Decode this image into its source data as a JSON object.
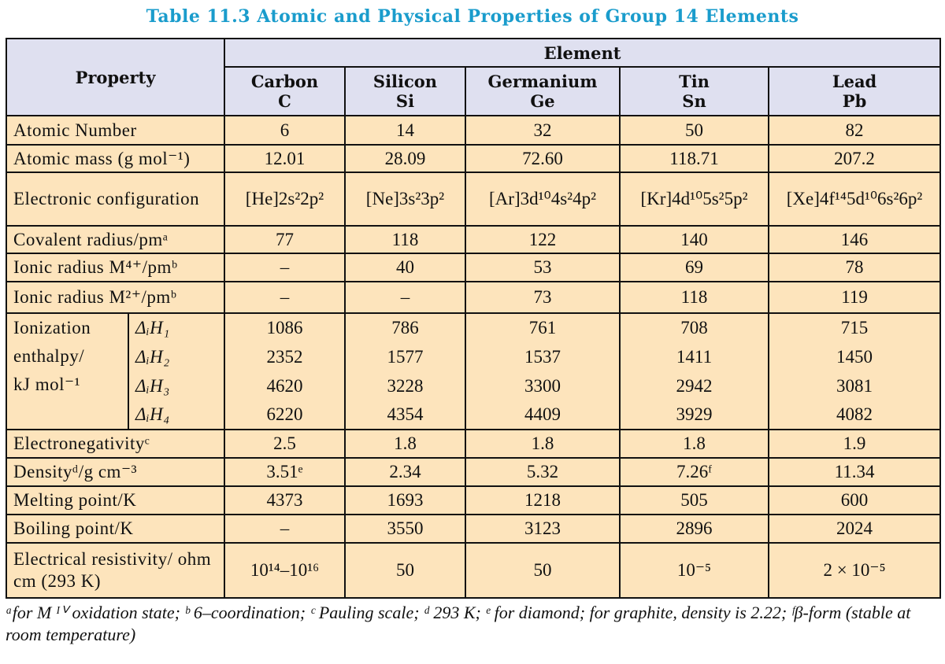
{
  "title": "Table 11.3  Atomic and Physical Properties of Group 14 Elements",
  "table": {
    "header": {
      "property": "Property",
      "group": "Element",
      "elements": [
        {
          "name": "Carbon",
          "symbol": "C"
        },
        {
          "name": "Silicon",
          "symbol": "Si"
        },
        {
          "name": "Germanium",
          "symbol": "Ge"
        },
        {
          "name": "Tin",
          "symbol": "Sn"
        },
        {
          "name": "Lead",
          "symbol": "Pb"
        }
      ]
    },
    "rows": [
      {
        "label": "Atomic Number",
        "cells": [
          "6",
          "14",
          "32",
          "50",
          "82"
        ]
      },
      {
        "label": "Atomic mass (g mol⁻¹)",
        "cells": [
          "12.01",
          "28.09",
          "72.60",
          "118.71",
          "207.2"
        ]
      },
      {
        "label": "Electronic configuration",
        "cells": [
          "[He]2s²2p²",
          "[Ne]3s²3p²",
          "[Ar]3d¹⁰4s²4p²",
          "[Kr]4d¹⁰5s²5p²",
          "[Xe]4f¹⁴5d¹⁰6s²6p²"
        ]
      },
      {
        "label": "Covalent radius/pmᵃ",
        "cells": [
          "77",
          "118",
          "122",
          "140",
          "146"
        ]
      },
      {
        "label": "Ionic radius M⁴⁺/pmᵇ",
        "cells": [
          "–",
          "40",
          "53",
          "69",
          "78"
        ]
      },
      {
        "label": "Ionic radius M²⁺/pmᵇ",
        "cells": [
          "–",
          "–",
          "73",
          "118",
          "119"
        ]
      },
      {
        "label": [
          "Ionization",
          "enthalpy/",
          "kJ mol⁻¹"
        ],
        "sub": [
          {
            "label": "ΔᵢH₁",
            "cells": [
              "1086",
              "786",
              "761",
              "708",
              "715"
            ]
          },
          {
            "label": "ΔᵢH₂",
            "cells": [
              "2352",
              "1577",
              "1537",
              "1411",
              "1450"
            ]
          },
          {
            "label": "ΔᵢH₃",
            "cells": [
              "4620",
              "3228",
              "3300",
              "2942",
              "3081"
            ]
          },
          {
            "label": "ΔᵢH₄",
            "cells": [
              "6220",
              "4354",
              "4409",
              "3929",
              "4082"
            ]
          }
        ]
      },
      {
        "label": "Electronegativityᶜ",
        "cells": [
          "2.5",
          "1.8",
          "1.8",
          "1.8",
          "1.9"
        ]
      },
      {
        "label": "Densityᵈ/g cm⁻³",
        "cells": [
          "3.51ᵉ",
          "2.34",
          "5.32",
          "7.26ᶠ",
          "11.34"
        ]
      },
      {
        "label": "Melting point/K",
        "cells": [
          "4373",
          "1693",
          "1218",
          "505",
          "600"
        ]
      },
      {
        "label": "Boiling point/K",
        "cells": [
          "–",
          "3550",
          "3123",
          "2896",
          "2024"
        ]
      },
      {
        "label": "Electrical resistivity/ ohm cm (293 K)",
        "cells": [
          "10¹⁴–10¹⁶",
          "50",
          "50",
          "10⁻⁵",
          "2 × 10⁻⁵"
        ]
      }
    ]
  },
  "footnote": "ᵃfor M ᴵⱽ oxidation state; ᵇ 6–coordination; ᶜ Pauling scale; ᵈ 293 K;  ᵉ for diamond; for graphite, density is 2.22; ᶠβ-form (stable at room temperature)"
}
